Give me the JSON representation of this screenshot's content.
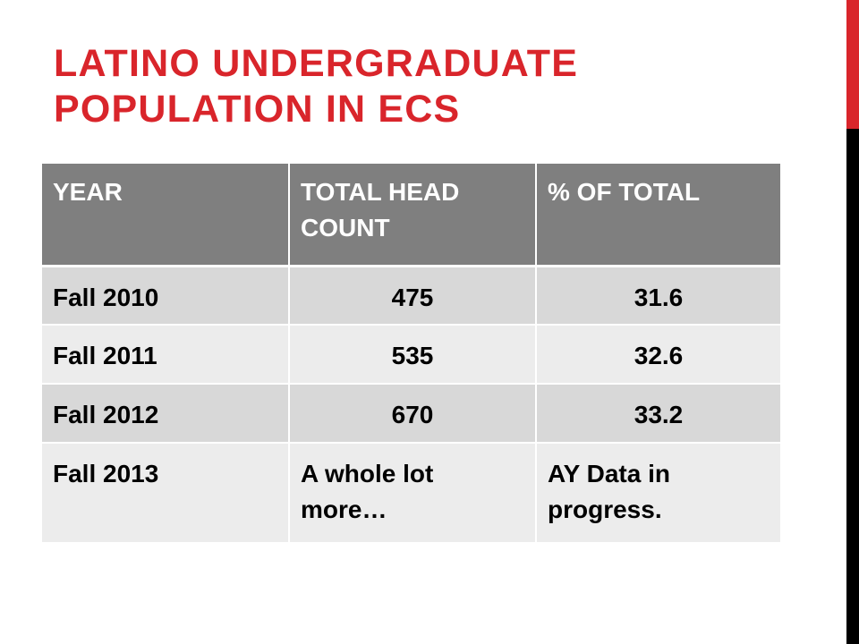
{
  "title": "LATINO UNDERGRADUATE POPULATION IN ECS",
  "colors": {
    "accent": "#d9252b",
    "title": "#d9252b",
    "sidebar_dark": "#000000",
    "header_bg": "#7f7f7f",
    "row_dark": "#d8d8d8",
    "row_light": "#ececec"
  },
  "table": {
    "headers": [
      "YEAR",
      "TOTAL HEAD COUNT",
      "% OF TOTAL"
    ],
    "rows": [
      [
        "Fall 2010",
        "475",
        "31.6"
      ],
      [
        "Fall 2011",
        "535",
        "32.6"
      ],
      [
        "Fall 2012",
        "670",
        "33.2"
      ],
      [
        "Fall 2013",
        "A whole lot more…",
        "AY Data in progress."
      ]
    ]
  }
}
